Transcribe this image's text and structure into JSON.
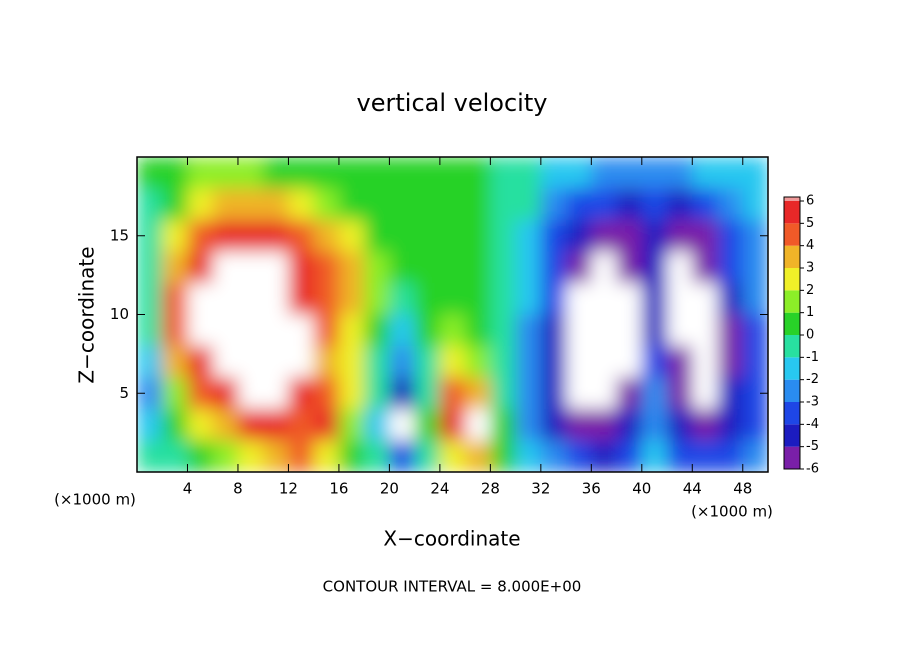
{
  "chart_data": {
    "type": "heatmap",
    "title": "vertical velocity",
    "xlabel": "X−coordinate",
    "ylabel": "Z−coordinate",
    "xunit": "(×1000 m)",
    "yunit": "(×1000 m)",
    "note": "CONTOUR INTERVAL = 8.000E+00",
    "xlim": [
      0,
      50
    ],
    "ylim": [
      0,
      20
    ],
    "xticks": [
      4,
      8,
      12,
      16,
      20,
      24,
      28,
      32,
      36,
      40,
      44,
      48
    ],
    "yticks": [
      5,
      10,
      15
    ],
    "x": [
      1,
      3,
      5,
      7,
      9,
      11,
      13,
      15,
      17,
      19,
      21,
      23,
      25,
      27,
      29,
      31,
      33,
      35,
      37,
      39,
      41,
      43,
      45,
      47,
      49
    ],
    "y": [
      19,
      17,
      15,
      13,
      11,
      9,
      7,
      5,
      3,
      1
    ],
    "z": [
      [
        1,
        1,
        2,
        2,
        2,
        1,
        1,
        1,
        0.5,
        0.5,
        0.5,
        0.5,
        0.5,
        0.5,
        0,
        0,
        -1,
        -1,
        -2,
        -2,
        -2,
        -2,
        -1,
        -1,
        -1
      ],
      [
        0,
        1,
        3,
        4,
        4,
        4,
        3,
        2,
        1,
        1,
        0.5,
        0.5,
        0.5,
        0.5,
        0,
        0,
        -2,
        -3,
        -3,
        -4,
        -3,
        -4,
        -3,
        -2,
        -1
      ],
      [
        0,
        3,
        5,
        6,
        6,
        6,
        5,
        4,
        3,
        1,
        1,
        1,
        0.5,
        0.5,
        0,
        -1,
        -3,
        -4,
        -5,
        -5,
        -4,
        -5,
        -5,
        -3,
        -2
      ],
      [
        0,
        4,
        6,
        8,
        8,
        7,
        6,
        5,
        4,
        2,
        1,
        1,
        1,
        0.5,
        0,
        -1,
        -3,
        -5,
        -8,
        -5,
        -4,
        -8,
        -5,
        -3,
        -2
      ],
      [
        0,
        5,
        8,
        8,
        8,
        8,
        6,
        5,
        4,
        2,
        0,
        1,
        1,
        1,
        0,
        -1,
        -3,
        -8,
        -8,
        -8,
        -4,
        -8,
        -8,
        -4,
        -2
      ],
      [
        0,
        5,
        8,
        8,
        8,
        8,
        7,
        5,
        3,
        1,
        -1,
        1,
        2,
        1,
        0,
        -2,
        -4,
        -8,
        -8,
        -8,
        -4,
        -8,
        -8,
        -5,
        -3
      ],
      [
        -1,
        4,
        6,
        8,
        8,
        8,
        8,
        4,
        3,
        0,
        -2,
        0,
        3,
        2,
        0,
        -2,
        -4,
        -8,
        -8,
        -8,
        -3,
        -5,
        -8,
        -5,
        -3
      ],
      [
        -2,
        2,
        5,
        6,
        8,
        8,
        6,
        5,
        3,
        0,
        -4,
        0,
        5,
        4,
        0,
        -2,
        -4,
        -8,
        -8,
        -6,
        -2,
        -5,
        -8,
        -4,
        -3
      ],
      [
        -1,
        1,
        3,
        4,
        6,
        6,
        5,
        6,
        2,
        -1,
        -8,
        1,
        6,
        8,
        1,
        -2,
        -4,
        -5,
        -6,
        -4,
        -2,
        -4,
        -6,
        -4,
        -3
      ],
      [
        0,
        0,
        1,
        2,
        3,
        4,
        5,
        3,
        1,
        0,
        -3,
        0,
        3,
        4,
        1,
        -1,
        -2,
        -3,
        -4,
        -3,
        -1,
        -3,
        -3,
        -3,
        -2
      ]
    ],
    "levels": [
      -6,
      -5,
      -4,
      -3,
      -2,
      -1,
      0,
      1,
      2,
      3,
      4,
      5,
      6
    ],
    "colors": [
      "#7a1fa8",
      "#1c1cc0",
      "#1e46e6",
      "#2a8cf0",
      "#28c8f0",
      "#28e0a0",
      "#28d228",
      "#8cee28",
      "#f0f028",
      "#f0b428",
      "#f05a28",
      "#e82828",
      "#f09a9a"
    ],
    "out_of_range_color": "#ffffff"
  }
}
